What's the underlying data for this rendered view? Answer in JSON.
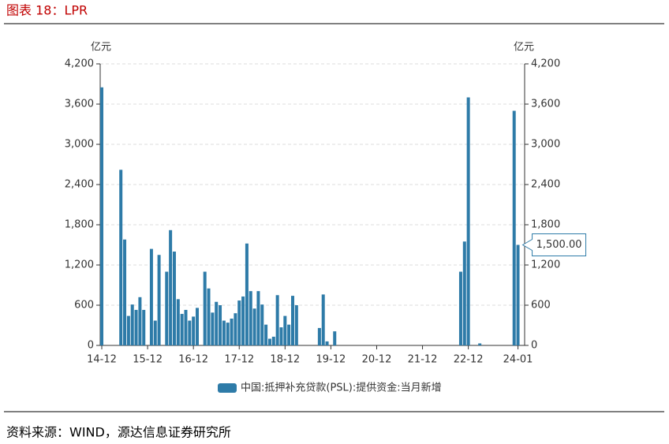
{
  "header": {
    "title": "图表 18：LPR"
  },
  "chart_data": {
    "type": "bar",
    "y_axis_label": "亿元",
    "y2_axis_label": "亿元",
    "categories": [
      "14-12",
      null,
      null,
      null,
      null,
      null,
      null,
      null,
      null,
      null,
      null,
      null,
      "15-12",
      null,
      null,
      null,
      null,
      null,
      null,
      null,
      null,
      null,
      null,
      null,
      "16-12",
      null,
      null,
      null,
      null,
      null,
      null,
      null,
      null,
      null,
      null,
      null,
      "17-12",
      null,
      null,
      null,
      null,
      null,
      null,
      null,
      null,
      null,
      null,
      null,
      "18-12",
      null,
      null,
      null,
      null,
      null,
      null,
      null,
      null,
      null,
      null,
      null,
      "19-12",
      null,
      null,
      null,
      null,
      null,
      null,
      null,
      null,
      null,
      null,
      null,
      "20-12",
      null,
      null,
      null,
      null,
      null,
      null,
      null,
      null,
      null,
      null,
      null,
      "21-12",
      null,
      null,
      null,
      null,
      null,
      null,
      null,
      null,
      null,
      null,
      null,
      "22-12",
      null,
      null,
      null,
      null,
      null,
      null,
      null,
      null,
      null,
      null,
      null,
      null,
      "24-01"
    ],
    "series": [
      {
        "name": "中国:抵押补充贷款(PSL):提供资金:当月新增",
        "color": "#2e7ba8",
        "values": [
          3850,
          0,
          0,
          0,
          0,
          2620,
          1580,
          440,
          610,
          530,
          720,
          530,
          0,
          1440,
          370,
          1350,
          0,
          1100,
          1720,
          1400,
          690,
          470,
          530,
          370,
          430,
          560,
          0,
          1100,
          850,
          490,
          650,
          600,
          370,
          340,
          400,
          480,
          670,
          730,
          1520,
          810,
          550,
          810,
          610,
          310,
          100,
          130,
          750,
          270,
          440,
          310,
          740,
          600,
          0,
          0,
          0,
          0,
          0,
          260,
          760,
          60,
          0,
          210,
          0,
          0,
          0,
          0,
          0,
          0,
          0,
          0,
          0,
          0,
          0,
          0,
          0,
          0,
          0,
          0,
          0,
          0,
          0,
          0,
          0,
          0,
          0,
          0,
          0,
          0,
          0,
          0,
          0,
          0,
          0,
          0,
          1100,
          1550,
          3700,
          0,
          0,
          30,
          0,
          0,
          0,
          0,
          0,
          0,
          0,
          0,
          3500,
          1500
        ],
        "value_labels": [
          null,
          null,
          null,
          null,
          null,
          null,
          null,
          null,
          null,
          null,
          null,
          null,
          null,
          null,
          null,
          null,
          null,
          null,
          null,
          null,
          null,
          null,
          null,
          null,
          null,
          null,
          null,
          null,
          null,
          null,
          null,
          null,
          null,
          null,
          null,
          null,
          null,
          null,
          null,
          null,
          null,
          null,
          null,
          null,
          null,
          null,
          null,
          null,
          null,
          null,
          null,
          null,
          null,
          null,
          null,
          null,
          null,
          null,
          null,
          null,
          null,
          null,
          null,
          null,
          null,
          null,
          null,
          null,
          null,
          null,
          null,
          null,
          null,
          null,
          null,
          null,
          null,
          null,
          null,
          null,
          null,
          null,
          null,
          null,
          null,
          null,
          null,
          null,
          null,
          null,
          null,
          null,
          null,
          null,
          null,
          null,
          null,
          null,
          null,
          null,
          null,
          null,
          null,
          null,
          null,
          null,
          null,
          null,
          null,
          "1,500.00"
        ]
      }
    ],
    "ylim": [
      0,
      4200
    ],
    "yticks": [
      0,
      600,
      {
        "value": 1200,
        "label": "1,200"
      },
      {
        "value": 1800,
        "label": "1,800"
      },
      {
        "value": 2400,
        "label": "2,400"
      },
      {
        "value": 3000,
        "label": "3,000"
      },
      {
        "value": 3600,
        "label": "3,600"
      },
      {
        "value": 4200,
        "label": "4,200"
      }
    ],
    "y2lim": [
      0,
      4200
    ],
    "y2ticks": [
      0,
      600,
      {
        "value": 1200,
        "label": "1,200"
      },
      {
        "value": 1800,
        "label": "1,800"
      },
      {
        "value": 2400,
        "label": "2,400"
      },
      {
        "value": 3000,
        "label": "3,000"
      },
      {
        "value": 3600,
        "label": "3,600"
      },
      {
        "value": 4200,
        "label": "4,200"
      }
    ],
    "grid": true,
    "legend": "bottom"
  },
  "footer": {
    "source": "资料来源：WIND，源达信息证券研究所"
  }
}
